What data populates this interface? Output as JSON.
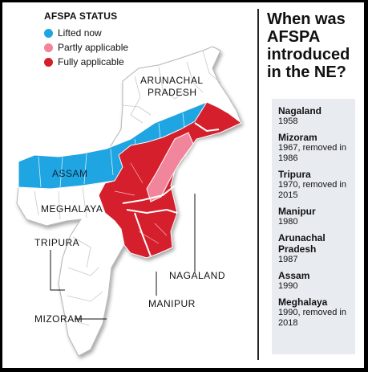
{
  "legend": {
    "title": "AFSPA STATUS",
    "items": [
      {
        "label": "Lifted now",
        "color": "#1ea5e2"
      },
      {
        "label": "Partly applicable",
        "color": "#f0859b"
      },
      {
        "label": "Fully applicable",
        "color": "#d51f2c"
      }
    ]
  },
  "map_labels": {
    "arunachal_line1": "ARUNACHAL",
    "arunachal_line2": "PRADESH",
    "assam": "ASSAM",
    "meghalaya": "MEGHALAYA",
    "tripura": "TRIPURA",
    "mizoram": "MIZORAM",
    "nagaland": "NAGALAND",
    "manipur": "MANIPUR"
  },
  "colors": {
    "lifted": "#1ea5e2",
    "partly": "#f0859b",
    "fully": "#d51f2c",
    "base": "#ffffff",
    "outline": "#b5b5b5"
  },
  "panel": {
    "title": "When was AFSPA introduced in the NE?",
    "entries": [
      {
        "state": "Nagaland",
        "detail": "1958"
      },
      {
        "state": "Mizoram",
        "detail": "1967, removed in 1986"
      },
      {
        "state": "Tripura",
        "detail": "1970, removed in 2015"
      },
      {
        "state": "Manipur",
        "detail": "1980"
      },
      {
        "state": "Arunachal Pradesh",
        "detail": "1987"
      },
      {
        "state": "Assam",
        "detail": "1990"
      },
      {
        "state": "Meghalaya",
        "detail": "1990, removed in 2018"
      }
    ]
  }
}
